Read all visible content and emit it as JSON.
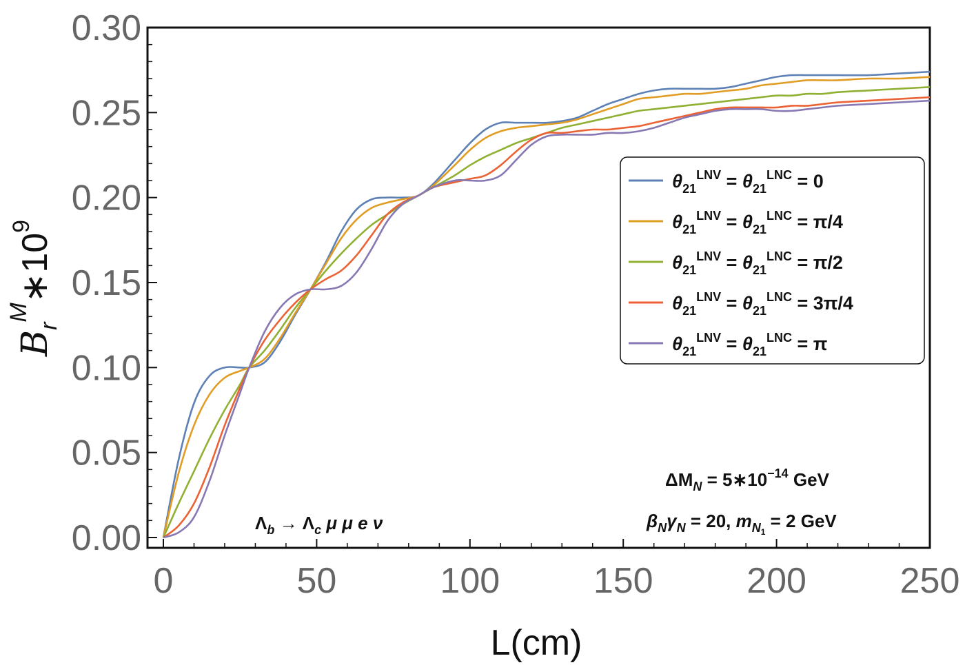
{
  "chart_data": {
    "type": "line",
    "xlabel": "L(cm)",
    "ylabel": {
      "base": "B",
      "sub": "r",
      "sup": "M",
      "suffix": "∗10",
      "exponent": "9"
    },
    "xlim": [
      0,
      250
    ],
    "ylim": [
      0,
      0.3
    ],
    "xticks": [
      "0",
      "50",
      "100",
      "150",
      "200",
      "250"
    ],
    "yticks": [
      "0.00",
      "0.05",
      "0.10",
      "0.15",
      "0.20",
      "0.25",
      "0.30"
    ],
    "legend_position": "center-right",
    "series": [
      {
        "name": "θ21 LNV = θ21 LNC = 0",
        "legend": {
          "theta": "θ",
          "sub": "21",
          "sup": "LNV",
          "eq": " = ",
          "theta2": "θ",
          "sub2": "21",
          "sup2": "LNC",
          "value": " = 0"
        },
        "color": "#5E81B5",
        "x": [
          0,
          5,
          10,
          15,
          20,
          25,
          28,
          33,
          38,
          43,
          48,
          53,
          58,
          63,
          68,
          73,
          78,
          83,
          88,
          95,
          100,
          105,
          110,
          115,
          120,
          125,
          130,
          135,
          140,
          145,
          150,
          155,
          160,
          165,
          170,
          175,
          180,
          185,
          190,
          195,
          200,
          205,
          210,
          215,
          220,
          230,
          240,
          250
        ],
        "y": [
          0.0,
          0.046,
          0.079,
          0.095,
          0.1,
          0.1,
          0.1,
          0.103,
          0.115,
          0.131,
          0.146,
          0.162,
          0.18,
          0.193,
          0.199,
          0.2,
          0.2,
          0.201,
          0.208,
          0.222,
          0.232,
          0.24,
          0.244,
          0.244,
          0.244,
          0.244,
          0.245,
          0.247,
          0.251,
          0.255,
          0.258,
          0.261,
          0.263,
          0.264,
          0.264,
          0.264,
          0.264,
          0.265,
          0.267,
          0.269,
          0.271,
          0.272,
          0.272,
          0.272,
          0.272,
          0.272,
          0.273,
          0.274
        ]
      },
      {
        "name": "θ21 LNV = θ21 LNC = π/4",
        "legend": {
          "theta": "θ",
          "sub": "21",
          "sup": "LNV",
          "eq": " = ",
          "theta2": "θ",
          "sub2": "21",
          "sup2": "LNC",
          "value": " = π/4"
        },
        "color": "#E19C24",
        "x": [
          0,
          5,
          10,
          15,
          20,
          25,
          28,
          33,
          38,
          43,
          48,
          53,
          58,
          63,
          68,
          73,
          78,
          83,
          88,
          95,
          100,
          105,
          110,
          115,
          120,
          125,
          130,
          135,
          140,
          145,
          150,
          155,
          160,
          165,
          170,
          175,
          180,
          185,
          190,
          195,
          200,
          205,
          210,
          215,
          220,
          230,
          240,
          250
        ],
        "y": [
          0.0,
          0.038,
          0.066,
          0.084,
          0.094,
          0.098,
          0.1,
          0.105,
          0.117,
          0.132,
          0.146,
          0.161,
          0.176,
          0.187,
          0.194,
          0.197,
          0.199,
          0.201,
          0.207,
          0.219,
          0.228,
          0.235,
          0.239,
          0.241,
          0.242,
          0.243,
          0.244,
          0.246,
          0.249,
          0.252,
          0.255,
          0.258,
          0.259,
          0.26,
          0.261,
          0.261,
          0.262,
          0.263,
          0.264,
          0.266,
          0.267,
          0.268,
          0.269,
          0.269,
          0.269,
          0.27,
          0.27,
          0.271
        ]
      },
      {
        "name": "θ21 LNV = θ21 LNC = π/2",
        "legend": {
          "theta": "θ",
          "sub": "21",
          "sup": "LNV",
          "eq": " = ",
          "theta2": "θ",
          "sub2": "21",
          "sup2": "LNC",
          "value": " = π/2"
        },
        "color": "#8FB032",
        "x": [
          0,
          5,
          10,
          15,
          20,
          25,
          28,
          33,
          38,
          43,
          48,
          53,
          58,
          63,
          68,
          73,
          78,
          83,
          88,
          95,
          100,
          105,
          110,
          115,
          120,
          125,
          130,
          135,
          140,
          145,
          150,
          155,
          160,
          165,
          170,
          175,
          180,
          185,
          190,
          195,
          200,
          205,
          210,
          215,
          220,
          230,
          240,
          250
        ],
        "y": [
          0.0,
          0.02,
          0.039,
          0.058,
          0.075,
          0.09,
          0.1,
          0.11,
          0.122,
          0.135,
          0.146,
          0.157,
          0.167,
          0.176,
          0.184,
          0.19,
          0.196,
          0.201,
          0.206,
          0.213,
          0.219,
          0.224,
          0.228,
          0.232,
          0.235,
          0.238,
          0.241,
          0.243,
          0.245,
          0.247,
          0.249,
          0.251,
          0.252,
          0.253,
          0.254,
          0.255,
          0.256,
          0.257,
          0.258,
          0.259,
          0.26,
          0.26,
          0.261,
          0.261,
          0.262,
          0.263,
          0.264,
          0.265
        ]
      },
      {
        "name": "θ21 LNV = θ21 LNC = 3π/4",
        "legend": {
          "theta": "θ",
          "sub": "21",
          "sup": "LNV",
          "eq": " = ",
          "theta2": "θ",
          "sub2": "21",
          "sup2": "LNC",
          "value": " = 3π/4"
        },
        "color": "#EB6235",
        "x": [
          0,
          5,
          10,
          15,
          20,
          25,
          28,
          33,
          38,
          43,
          48,
          53,
          58,
          63,
          68,
          73,
          78,
          83,
          88,
          95,
          100,
          105,
          110,
          115,
          120,
          125,
          130,
          135,
          140,
          145,
          150,
          155,
          160,
          165,
          170,
          175,
          180,
          185,
          190,
          195,
          200,
          205,
          210,
          215,
          220,
          230,
          240,
          250
        ],
        "y": [
          0.0,
          0.007,
          0.02,
          0.041,
          0.066,
          0.088,
          0.1,
          0.116,
          0.128,
          0.138,
          0.146,
          0.152,
          0.157,
          0.166,
          0.178,
          0.19,
          0.197,
          0.201,
          0.206,
          0.209,
          0.211,
          0.213,
          0.219,
          0.227,
          0.234,
          0.238,
          0.238,
          0.239,
          0.24,
          0.24,
          0.241,
          0.242,
          0.244,
          0.246,
          0.248,
          0.25,
          0.252,
          0.253,
          0.253,
          0.253,
          0.253,
          0.254,
          0.254,
          0.255,
          0.256,
          0.257,
          0.258,
          0.259
        ]
      },
      {
        "name": "θ21 LNV = θ21 LNC = π",
        "legend": {
          "theta": "θ",
          "sub": "21",
          "sup": "LNV",
          "eq": " = ",
          "theta2": "θ",
          "sub2": "21",
          "sup2": "LNC",
          "value": " = π"
        },
        "color": "#8778B3",
        "x": [
          0,
          5,
          10,
          15,
          20,
          25,
          28,
          33,
          38,
          43,
          48,
          53,
          58,
          63,
          68,
          73,
          78,
          83,
          88,
          95,
          100,
          105,
          110,
          115,
          120,
          125,
          130,
          135,
          140,
          145,
          150,
          155,
          160,
          165,
          170,
          175,
          180,
          185,
          190,
          195,
          200,
          205,
          210,
          215,
          220,
          230,
          240,
          250
        ],
        "y": [
          0.0,
          0.003,
          0.012,
          0.033,
          0.06,
          0.085,
          0.1,
          0.121,
          0.135,
          0.143,
          0.146,
          0.146,
          0.148,
          0.156,
          0.17,
          0.186,
          0.196,
          0.201,
          0.206,
          0.21,
          0.21,
          0.21,
          0.213,
          0.222,
          0.231,
          0.236,
          0.237,
          0.237,
          0.237,
          0.238,
          0.238,
          0.239,
          0.241,
          0.244,
          0.247,
          0.249,
          0.251,
          0.252,
          0.252,
          0.252,
          0.251,
          0.251,
          0.252,
          0.253,
          0.254,
          0.255,
          0.256,
          0.257
        ]
      }
    ],
    "annotations": {
      "process": {
        "lambda": "Λ",
        "sub_b": "b",
        "arrow": " → ",
        "lambda2": "Λ",
        "sub_c": "c",
        "rest": " μ μ e ν"
      },
      "delta_m": {
        "prefix": "ΔM",
        "sub": "N",
        "mid": " = 5∗10",
        "sup": "−14",
        "unit": " GeV"
      },
      "boost": {
        "beta": "β",
        "sub1": "N",
        "gamma": "γ",
        "sub2": "N",
        "mid": " = 20, ",
        "m": "m",
        "sub3": "N",
        "sub3b": "1",
        "end": " = 2 GeV"
      }
    }
  }
}
